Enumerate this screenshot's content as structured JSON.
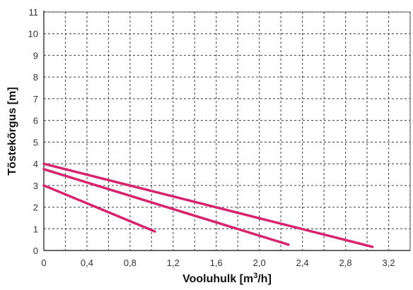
{
  "chart_data": {
    "type": "line",
    "xlabel": "Vooluhulk [m",
    "xlabel_sup": "3",
    "xlabel_suffix": "/h]",
    "ylabel": "Tõstekõrgus [m]",
    "xlim": [
      0,
      3.4
    ],
    "ylim": [
      0,
      11
    ],
    "x_tick_labels": [
      "0",
      "0,4",
      "0,8",
      "1,2",
      "1,6",
      "2,0",
      "2,4",
      "2,8",
      "3,2"
    ],
    "x_tick_values": [
      0,
      0.4,
      0.8,
      1.2,
      1.6,
      2.0,
      2.4,
      2.8,
      3.2
    ],
    "y_tick_labels": [
      "0",
      "1",
      "2",
      "3",
      "4",
      "5",
      "6",
      "7",
      "8",
      "9",
      "10",
      "11"
    ],
    "y_tick_values": [
      0,
      1,
      2,
      3,
      4,
      5,
      6,
      7,
      8,
      9,
      10,
      11
    ],
    "x_minor_step": 0.2,
    "grid": true,
    "line_color": "#d6246e",
    "series": [
      {
        "x": [
          0,
          1.03
        ],
        "y": [
          3.0,
          0.88
        ]
      },
      {
        "x": [
          0,
          2.27
        ],
        "y": [
          3.75,
          0.27
        ]
      },
      {
        "x": [
          0,
          3.05
        ],
        "y": [
          4.0,
          0.17
        ]
      }
    ]
  }
}
